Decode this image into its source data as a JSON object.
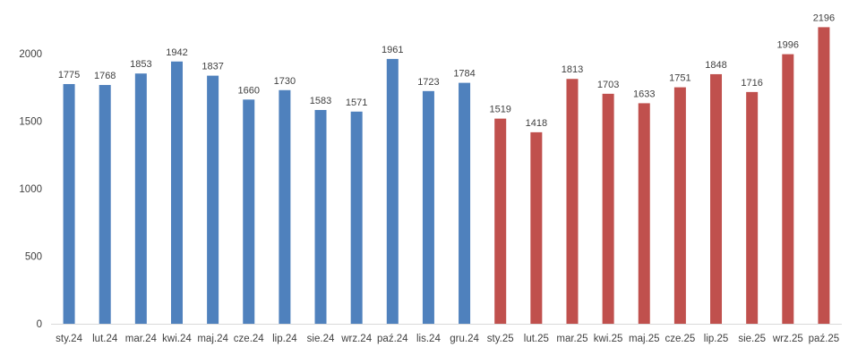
{
  "chart_data": {
    "type": "bar",
    "title": "",
    "xlabel": "",
    "ylabel": "",
    "ylim": [
      0,
      2000
    ],
    "yticks": [
      0,
      500,
      1000,
      1500,
      2000
    ],
    "grid": false,
    "legend": "none",
    "colors": {
      "2024": "#4F81BD",
      "2025": "#C0504D",
      "axis": "#D9D9D9",
      "text": "#404040"
    },
    "categories": [
      "sty.24",
      "lut.24",
      "mar.24",
      "kwi.24",
      "maj.24",
      "cze.24",
      "lip.24",
      "sie.24",
      "wrz.24",
      "paź.24",
      "lis.24",
      "gru.24",
      "sty.25",
      "lut.25",
      "mar.25",
      "kwi.25",
      "maj.25",
      "cze.25",
      "lip.25",
      "sie.25",
      "wrz.25",
      "paź.25"
    ],
    "values": [
      1775,
      1768,
      1853,
      1942,
      1837,
      1660,
      1730,
      1583,
      1571,
      1961,
      1723,
      1784,
      1519,
      1418,
      1813,
      1703,
      1633,
      1751,
      1848,
      1716,
      1996,
      2196
    ],
    "bar_colors": [
      "#4F81BD",
      "#4F81BD",
      "#4F81BD",
      "#4F81BD",
      "#4F81BD",
      "#4F81BD",
      "#4F81BD",
      "#4F81BD",
      "#4F81BD",
      "#4F81BD",
      "#4F81BD",
      "#4F81BD",
      "#C0504D",
      "#C0504D",
      "#C0504D",
      "#C0504D",
      "#C0504D",
      "#C0504D",
      "#C0504D",
      "#C0504D",
      "#C0504D",
      "#C0504D"
    ]
  }
}
